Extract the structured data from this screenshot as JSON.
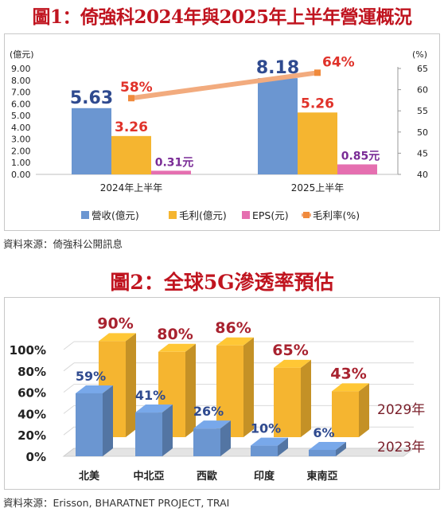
{
  "figure1": {
    "title": "圖1：倚強科2024年與2025年上半年營運概況",
    "source": "資料來源：倚強科公開訊息",
    "chart_data": {
      "type": "bar",
      "categories": [
        "2024年上半年",
        "2025上半年"
      ],
      "series": [
        {
          "name": "營收(億元)",
          "values": [
            5.63,
            8.18
          ],
          "labels": [
            "5.63",
            "8.18"
          ],
          "color": "#6b96d1",
          "label_color": "#2f4a8f",
          "axis": "left"
        },
        {
          "name": "毛利(億元)",
          "values": [
            3.26,
            5.26
          ],
          "labels": [
            "3.26",
            "5.26"
          ],
          "color": "#f5b530",
          "label_color": "#e0322a",
          "axis": "left"
        },
        {
          "name": "EPS(元)",
          "values": [
            0.31,
            0.85
          ],
          "labels": [
            "0.31元",
            "0.85元"
          ],
          "color": "#e56fb0",
          "label_color": "#7a2c96",
          "axis": "left"
        },
        {
          "name": "毛利率(%)",
          "type": "line",
          "values": [
            58,
            64
          ],
          "labels": [
            "58%",
            "64%"
          ],
          "color": "#f2ab7e",
          "marker_color": "#f08a3c",
          "label_color": "#e0322a",
          "axis": "right"
        }
      ],
      "y_left": {
        "label": "(億元)",
        "ylim": [
          0,
          9
        ],
        "ticks": [
          "0.00",
          "1.00",
          "2.00",
          "3.00",
          "4.00",
          "5.00",
          "6.00",
          "7.00",
          "8.00",
          "9.00"
        ]
      },
      "y_right": {
        "label": "(%)",
        "ylim": [
          40,
          65
        ],
        "ticks": [
          "40",
          "45",
          "50",
          "55",
          "60",
          "65"
        ]
      },
      "legend": "bottom",
      "grid": false
    }
  },
  "figure2": {
    "title": "圖2：全球5G滲透率預估",
    "source": "資料來源：Erisson, BHARATNET PROJECT, TRAI",
    "chart_data": {
      "type": "bar",
      "categories": [
        "北美",
        "中北亞",
        "西歐",
        "印度",
        "東南亞"
      ],
      "series": [
        {
          "name": "2023年",
          "values": [
            59,
            41,
            26,
            10,
            6
          ],
          "labels": [
            "59%",
            "41%",
            "26%",
            "10%",
            "6%"
          ],
          "color": "#6b96d1",
          "label_color": "#2f4a8f"
        },
        {
          "name": "2029年",
          "values": [
            90,
            80,
            86,
            65,
            43
          ],
          "labels": [
            "90%",
            "80%",
            "86%",
            "65%",
            "43%"
          ],
          "color": "#f5b530",
          "label_color": "#a8222f"
        }
      ],
      "ylim": [
        0,
        100
      ],
      "yticks": [
        "0%",
        "20%",
        "40%",
        "60%",
        "80%",
        "100%"
      ],
      "grid": true,
      "style": "3d"
    }
  }
}
